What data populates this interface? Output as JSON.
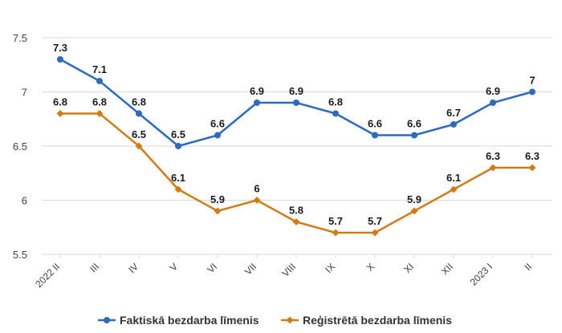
{
  "chart_data": {
    "type": "line",
    "categories": [
      "2022 II",
      "III",
      "IV",
      "V",
      "VI",
      "VII",
      "VIII",
      "IX",
      "X",
      "XI",
      "XII",
      "2023 I",
      "II"
    ],
    "series": [
      {
        "name": "Faktiskā bezdarba līmenis",
        "values": [
          7.3,
          7.1,
          6.8,
          6.5,
          6.6,
          6.9,
          6.9,
          6.8,
          6.6,
          6.6,
          6.7,
          6.9,
          7
        ],
        "labels": [
          "7.3",
          "7.1",
          "6.8",
          "6.5",
          "6.6",
          "6.9",
          "6.9",
          "6.8",
          "6.6",
          "6.6",
          "6.7",
          "6.9",
          "7"
        ],
        "color": "#2e6bbd",
        "marker": "circle"
      },
      {
        "name": "Reģistrētā bezdarba līmenis",
        "values": [
          6.8,
          6.8,
          6.5,
          6.1,
          5.9,
          6,
          5.8,
          5.7,
          5.7,
          5.9,
          6.1,
          6.3,
          6.3
        ],
        "labels": [
          "6.8",
          "6.8",
          "6.5",
          "6.1",
          "5.9",
          "6",
          "5.8",
          "5.7",
          "5.7",
          "5.9",
          "6.1",
          "6.3",
          "6.3"
        ],
        "color": "#d17d17",
        "marker": "diamond"
      }
    ],
    "yticks": [
      5.5,
      6,
      6.5,
      7,
      7.5
    ],
    "ytick_labels": [
      "5.5",
      "6",
      "6.5",
      "7",
      "7.5"
    ],
    "ylim": [
      5.5,
      7.5
    ],
    "grid": true,
    "legend": "bottom",
    "title": "",
    "xlabel": "",
    "ylabel": ""
  }
}
